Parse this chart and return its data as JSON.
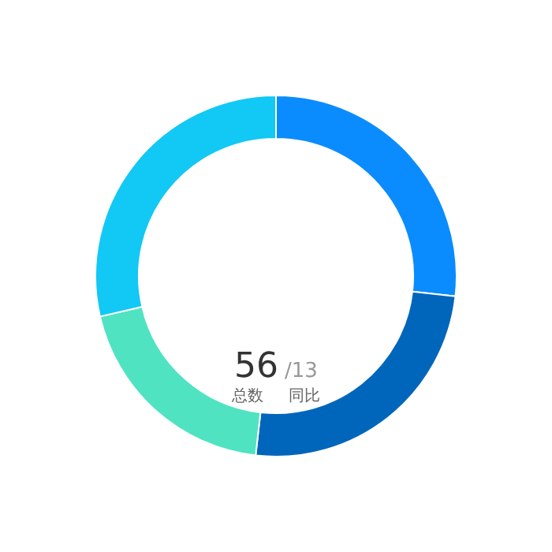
{
  "chart_data": {
    "type": "donut",
    "categories": [
      null,
      null,
      null,
      null
    ],
    "values": [
      26.8,
      25,
      19.6,
      28.6
    ],
    "colors": [
      "#0a8cff",
      "#0066bb",
      "#50e3c2",
      "#12c8f5"
    ],
    "annotations": [
      "56",
      "/13",
      "总数",
      "同比"
    ],
    "legend": false
  }
}
